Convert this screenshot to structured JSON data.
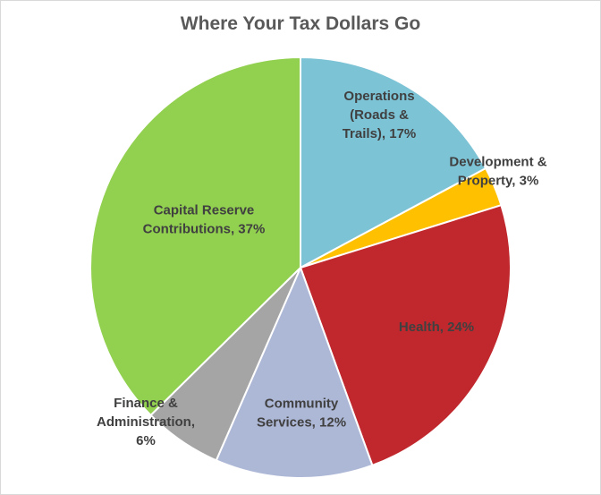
{
  "chart_data": {
    "type": "pie",
    "title": "Where Your Tax Dollars Go",
    "slices": [
      {
        "name": "Operations (Roads & Trails)",
        "value": 17,
        "color": "#7dc3d6",
        "label_lines": [
          "Operations",
          "(Roads &",
          "Trails), 17%"
        ]
      },
      {
        "name": "Development & Property",
        "value": 3,
        "color": "#ffc000",
        "label_lines": [
          "Development &",
          "Property, 3%"
        ]
      },
      {
        "name": "Health",
        "value": 24,
        "color": "#c0282d",
        "label_lines": [
          "Health, 24%"
        ]
      },
      {
        "name": "Community Services",
        "value": 12,
        "color": "#adb7d6",
        "label_lines": [
          "Community",
          "Services, 12%"
        ]
      },
      {
        "name": "Finance & Administration",
        "value": 6,
        "color": "#a5a5a5",
        "label_lines": [
          "Finance &",
          "Administration,",
          "6%"
        ]
      },
      {
        "name": "Capital Reserve Contributions",
        "value": 37,
        "color": "#92d050",
        "label_lines": [
          "Capital Reserve",
          "Contributions, 37%"
        ]
      }
    ]
  }
}
